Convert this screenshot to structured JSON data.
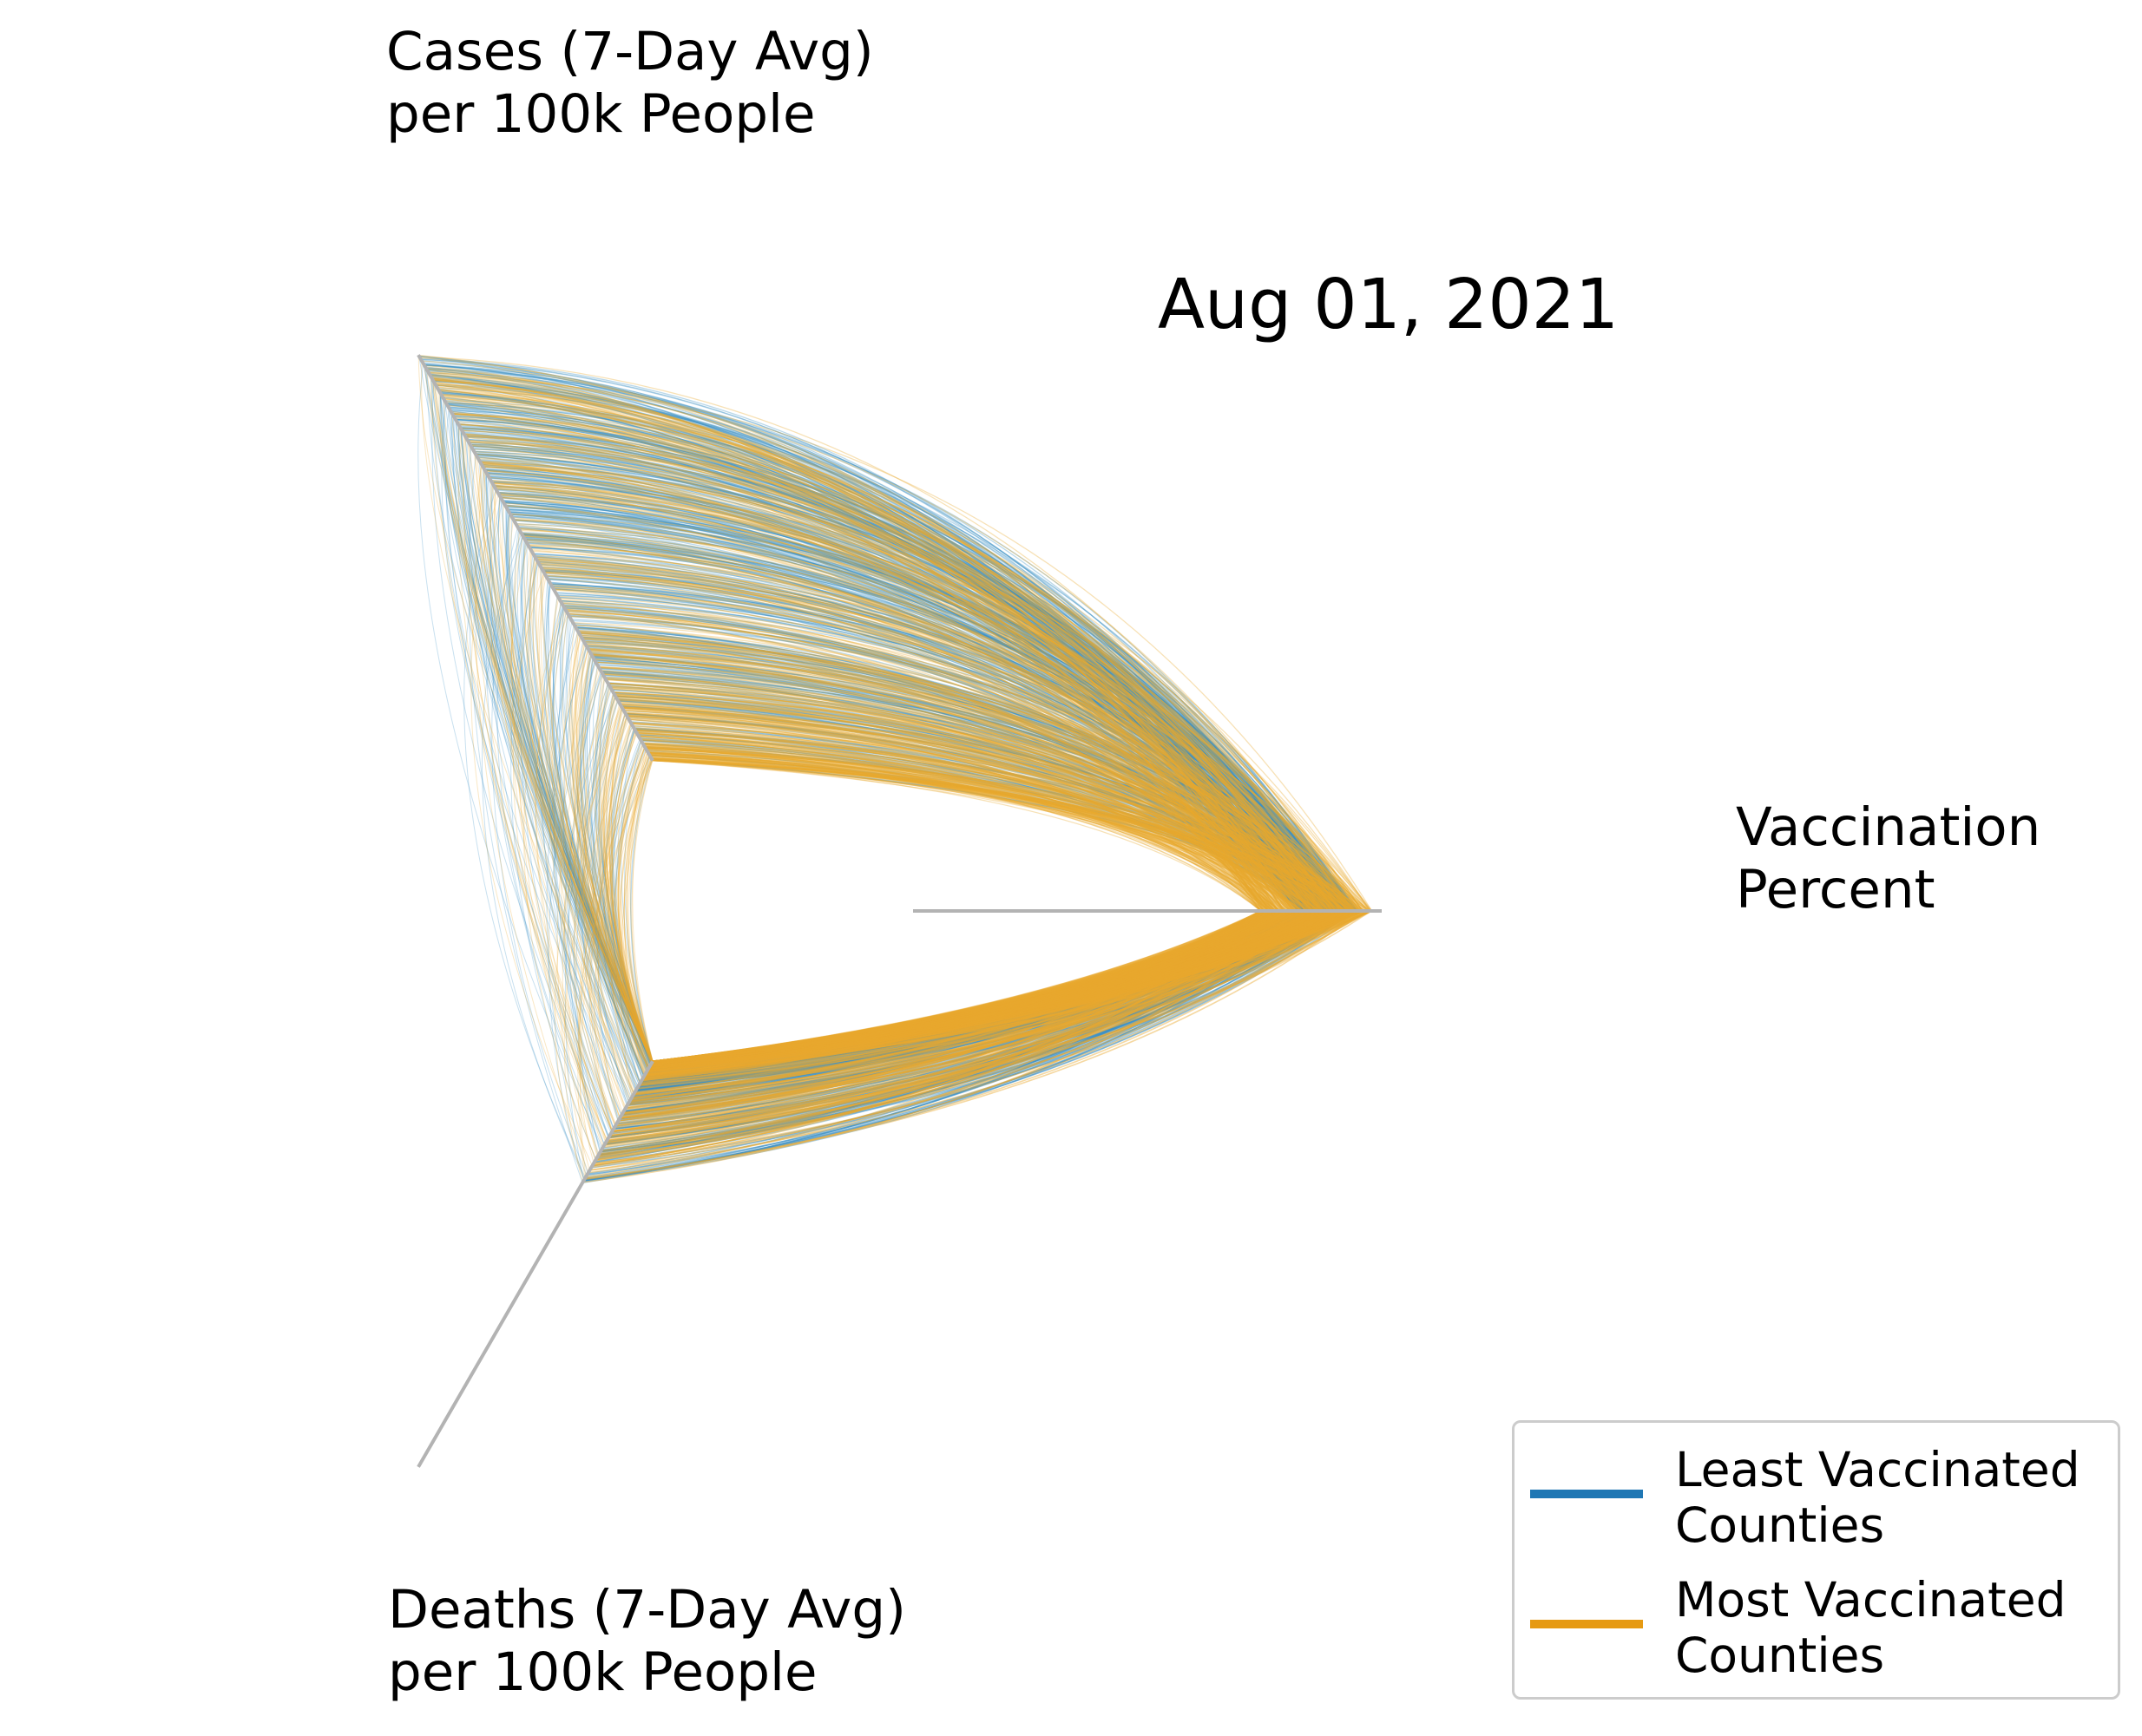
{
  "title": "Aug 01, 2021",
  "axes": {
    "cases": "Cases (7-Day Avg)\nper 100k People",
    "vaccination": "Vaccination\nPercent",
    "deaths": "Deaths (7-Day Avg)\nper 100k People"
  },
  "legend": [
    {
      "label": "Least Vaccinated\nCounties",
      "color": "#1f77b4"
    },
    {
      "label": "Most Vaccinated\nCounties",
      "color": "#e69a12"
    }
  ],
  "colors": {
    "least": "#3a8fc4",
    "most": "#e8a92e",
    "axis": "#b3b3b3"
  },
  "chart_data": {
    "type": "hive plot",
    "date": "Aug 01, 2021",
    "axes": [
      "Cases (7-Day Avg) per 100k People",
      "Vaccination Percent",
      "Deaths (7-Day Avg) per 100k People"
    ],
    "series": [
      {
        "name": "Least Vaccinated Counties",
        "vaccination_pos": [
          0.82,
          0.95
        ],
        "cases_pos": [
          0.0,
          1.0
        ],
        "deaths_pos": [
          0.0,
          0.3
        ],
        "approx_links": 500
      },
      {
        "name": "Most Vaccinated Counties",
        "vaccination_pos": [
          0.74,
          0.98
        ],
        "cases_pos": [
          0.0,
          1.0
        ],
        "deaths_pos": [
          0.0,
          0.3
        ],
        "approx_links": 500
      }
    ]
  }
}
